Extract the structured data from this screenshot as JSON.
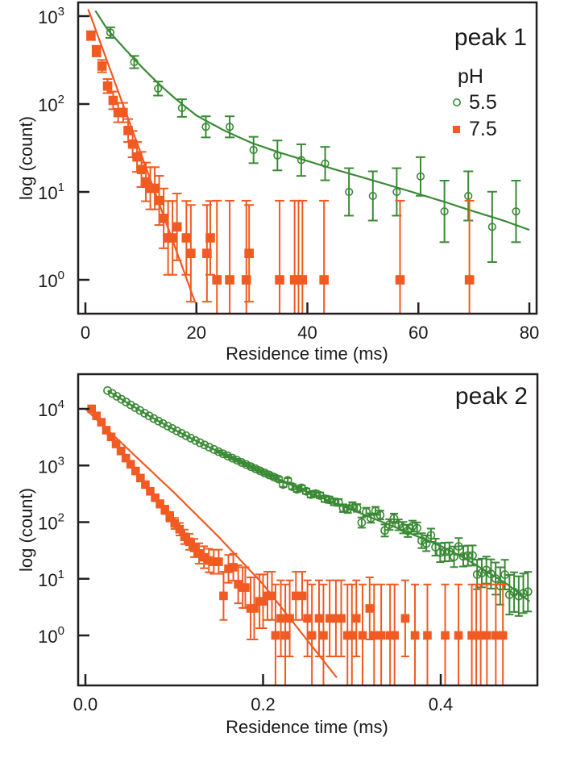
{
  "colors": {
    "ph55": "#3a8a35",
    "ph75": "#f15a22",
    "axis": "#231f20"
  },
  "chart_data": [
    {
      "type": "scatter",
      "title": "peak 1",
      "xlabel": "Residence time (ms)",
      "ylabel": "log (count)",
      "xscale": "linear",
      "yscale": "log",
      "xlim": [
        -1.3,
        81.3
      ],
      "ylim": [
        0.4,
        1300
      ],
      "xticks": [
        0,
        20,
        40,
        60,
        80
      ],
      "xtick_labels": [
        "0",
        "20",
        "40",
        "60",
        "80"
      ],
      "yticks": [
        1,
        10,
        100,
        1000
      ],
      "ytick_labels": [
        {
          "base": "10",
          "exp": "0"
        },
        {
          "base": "10",
          "exp": "1"
        },
        {
          "base": "10",
          "exp": "2"
        },
        {
          "base": "10",
          "exp": "3"
        }
      ],
      "legend": {
        "title": "pH",
        "placement": "top-right",
        "entries": [
          "5.5",
          "7.5"
        ]
      },
      "series": [
        {
          "name": "5.5",
          "marker": "open-circle",
          "color_key": "ph55",
          "x": [
            4.5,
            8.8,
            13.1,
            17.4,
            21.7,
            26.0,
            30.3,
            34.6,
            38.9,
            43.2,
            47.5,
            51.8,
            56.1,
            60.4,
            64.7,
            69.0,
            73.3,
            77.6
          ],
          "y": [
            650,
            300,
            150,
            90,
            55,
            55,
            30,
            26,
            23,
            21,
            10,
            9,
            10,
            15,
            6,
            9,
            4,
            6
          ],
          "err": [
            0.06,
            0.07,
            0.08,
            0.1,
            0.12,
            0.12,
            0.15,
            0.17,
            0.18,
            0.19,
            0.27,
            0.28,
            0.27,
            0.22,
            0.35,
            0.28,
            0.4,
            0.35
          ],
          "fit": {
            "type": "bi-exponential",
            "x": [
              1.8,
              4,
              7,
              10,
              13,
              16,
              20,
              25,
              30,
              35,
              40,
              45,
              50,
              55,
              60,
              65,
              70,
              75,
              80
            ],
            "y": [
              1150,
              700,
              430,
              270,
              175,
              118,
              74,
              50,
              36,
              28,
              22.5,
              18,
              14.6,
              11.8,
              9.5,
              7.6,
              6.0,
              4.8,
              3.7
            ]
          }
        },
        {
          "name": "7.5",
          "marker": "filled-square",
          "color_key": "ph75",
          "x": [
            1.0,
            2.0,
            3.0,
            4.0,
            5.0,
            5.9,
            6.8,
            7.7,
            8.5,
            9.3,
            10.1,
            10.9,
            11.7,
            12.5,
            13.3,
            14.1,
            14.9,
            15.7,
            16.5,
            18.2,
            19.0,
            21.9,
            22.5,
            23.7,
            26.0,
            29.0,
            29.5,
            35.0,
            37.7,
            38.4,
            39.1,
            43.0,
            56.7,
            69.2
          ],
          "y": [
            600,
            400,
            270,
            160,
            110,
            80,
            80,
            50,
            35,
            25,
            18,
            13,
            11,
            11,
            8,
            5,
            3,
            3,
            4,
            3,
            2,
            2,
            3,
            1,
            1,
            1,
            2,
            1,
            1,
            1,
            1,
            1,
            1,
            1
          ],
          "err": [
            0.05,
            0.06,
            0.07,
            0.08,
            0.1,
            0.11,
            0.11,
            0.13,
            0.15,
            0.17,
            0.2,
            0.22,
            0.24,
            0.24,
            0.28,
            0.34,
            0.42,
            0.42,
            0.38,
            0.42,
            0.55,
            0.55,
            0.42,
            0.9,
            0.9,
            0.9,
            0.55,
            0.9,
            0.9,
            0.9,
            0.9,
            0.9,
            0.9,
            0.9
          ],
          "fit": {
            "type": "exponential",
            "x": [
              0.5,
              19.8
            ],
            "y": [
              1200,
              0.55
            ]
          }
        }
      ]
    },
    {
      "type": "scatter",
      "title": "peak 2",
      "xlabel": "Residence time (ms)",
      "ylabel": "log (count)",
      "xscale": "linear",
      "yscale": "log",
      "xlim": [
        -0.008,
        0.509
      ],
      "ylim": [
        0.14,
        40000
      ],
      "xticks": [
        0.0,
        0.2,
        0.4
      ],
      "xtick_labels": [
        "0.0",
        "0.2",
        "0.4"
      ],
      "yticks": [
        1,
        10,
        100,
        1000,
        10000
      ],
      "ytick_labels": [
        {
          "base": "10",
          "exp": "0"
        },
        {
          "base": "10",
          "exp": "1"
        },
        {
          "base": "10",
          "exp": "2"
        },
        {
          "base": "10",
          "exp": "3"
        },
        {
          "base": "10",
          "exp": "4"
        }
      ],
      "series": [
        {
          "name": "5.5",
          "marker": "open-circle",
          "color_key": "ph55",
          "x_start": 0.025,
          "x_step": 0.0052,
          "count": 92,
          "fit": {
            "type": "bi-exponential",
            "x": [
              0.025,
              0.05,
              0.075,
              0.1,
              0.125,
              0.15,
              0.175,
              0.2,
              0.225,
              0.25,
              0.275,
              0.3,
              0.325,
              0.35,
              0.375,
              0.4,
              0.425,
              0.45,
              0.475,
              0.5
            ],
            "y": [
              21000,
              12000,
              7000,
              4300,
              2700,
              1750,
              1150,
              760,
              510,
              340,
              235,
              165,
              115,
              80,
              55,
              38,
              24,
              14,
              8,
              4
            ]
          },
          "noise_seed": 7
        },
        {
          "name": "7.5",
          "marker": "filled-square",
          "color_key": "ph75",
          "x": [
            0.007,
            0.0125,
            0.018,
            0.0235,
            0.029,
            0.0345,
            0.04,
            0.0455,
            0.051,
            0.0565,
            0.062,
            0.0675,
            0.073,
            0.0785,
            0.084,
            0.0895,
            0.095,
            0.1005,
            0.106,
            0.1115,
            0.117,
            0.1225,
            0.128,
            0.1335,
            0.139,
            0.1445,
            0.15,
            0.1555,
            0.161,
            0.1665,
            0.172,
            0.177,
            0.18,
            0.186,
            0.19,
            0.196,
            0.2,
            0.205,
            0.21,
            0.214,
            0.22,
            0.225,
            0.23,
            0.237,
            0.244,
            0.25,
            0.255,
            0.263,
            0.268,
            0.275,
            0.282,
            0.288,
            0.295,
            0.3,
            0.305,
            0.312,
            0.32,
            0.325,
            0.333,
            0.343,
            0.348,
            0.36,
            0.371,
            0.385,
            0.405,
            0.42,
            0.435,
            0.44,
            0.445,
            0.452,
            0.462,
            0.47
          ],
          "y": [
            10000,
            7500,
            5800,
            4200,
            3200,
            2400,
            1800,
            1350,
            1050,
            800,
            600,
            460,
            350,
            270,
            210,
            165,
            125,
            95,
            75,
            55,
            45,
            35,
            28,
            24,
            21,
            20,
            20,
            5,
            15,
            16,
            8,
            7,
            7,
            3,
            3,
            4,
            4,
            5,
            5,
            1,
            2,
            1,
            2,
            5,
            5,
            2,
            1,
            2,
            1,
            2,
            2,
            2,
            1,
            1,
            2,
            1,
            3,
            1,
            1,
            1,
            1,
            2,
            1,
            1,
            1,
            1,
            1,
            1,
            1,
            1,
            1,
            1
          ],
          "fit": {
            "type": "exponential",
            "x": [
              0.0,
              0.1,
              0.15,
              0.2,
              0.283
            ],
            "y": [
              10000,
              330,
              55,
              8,
              0.18
            ]
          }
        }
      ]
    }
  ]
}
